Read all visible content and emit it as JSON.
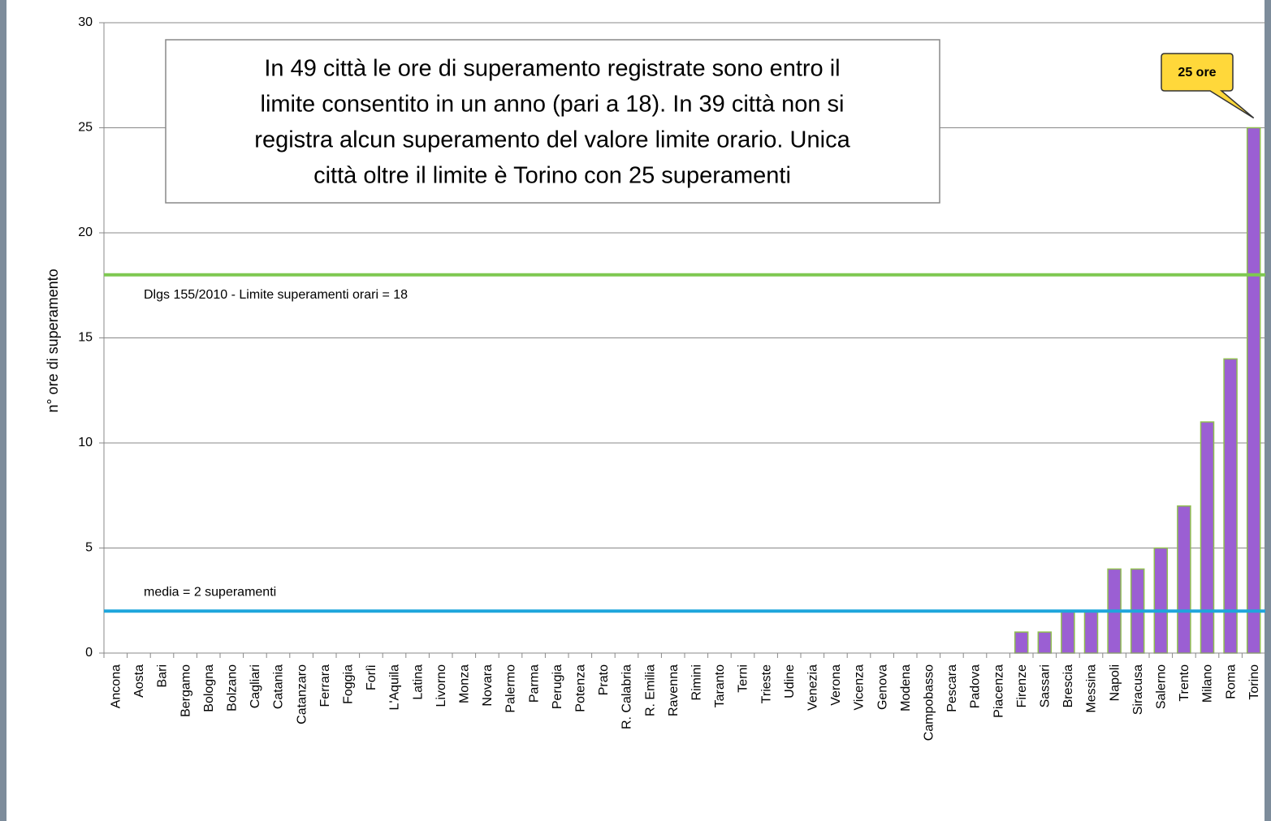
{
  "chart_data": {
    "type": "bar",
    "y_label": "n° ore di superamento",
    "categories": [
      "Ancona",
      "Aosta",
      "Bari",
      "Bergamo",
      "Bologna",
      "Bolzano",
      "Cagliari",
      "Catania",
      "Catanzaro",
      "Ferrara",
      "Foggia",
      "Forlì",
      "L'Aquila",
      "Latina",
      "Livorno",
      "Monza",
      "Novara",
      "Palermo",
      "Parma",
      "Perugia",
      "Potenza",
      "Prato",
      "R. Calabria",
      "R. Emilia",
      "Ravenna",
      "Rimini",
      "Taranto",
      "Terni",
      "Trieste",
      "Udine",
      "Venezia",
      "Verona",
      "Vicenza",
      "Genova",
      "Modena",
      "Campobasso",
      "Pescara",
      "Padova",
      "Piacenza",
      "Firenze",
      "Sassari",
      "Brescia",
      "Messina",
      "Napoli",
      "Siracusa",
      "Salerno",
      "Trento",
      "Milano",
      "Roma",
      "Torino"
    ],
    "values": [
      0,
      0,
      0,
      0,
      0,
      0,
      0,
      0,
      0,
      0,
      0,
      0,
      0,
      0,
      0,
      0,
      0,
      0,
      0,
      0,
      0,
      0,
      0,
      0,
      0,
      0,
      0,
      0,
      0,
      0,
      0,
      0,
      0,
      0,
      0,
      0,
      0,
      0,
      0,
      1,
      1,
      2,
      2,
      4,
      4,
      5,
      7,
      11,
      14,
      25
    ],
    "color": "#9b5fd3",
    "edge_color": "#8fbf4f",
    "ylim": [
      0,
      30
    ],
    "yticks": [
      0,
      5,
      10,
      15,
      20,
      25,
      30
    ],
    "grid": true,
    "reference_lines": [
      {
        "label": "Dlgs 155/2010 - Limite superamenti orari = 18",
        "value": 18,
        "color": "#7ec850"
      },
      {
        "label": "media = 2 superamenti",
        "value": 2,
        "color": "#1ea6dc"
      }
    ],
    "annotation": [
      "In 49 città le ore di superamento registrate sono entro il",
      "limite consentito in un anno (pari a 18). In 39 città non si",
      "registra alcun superamento del valore limite orario. Unica",
      "città oltre il limite è Torino con 25 superamenti"
    ],
    "callout": "25 ore"
  }
}
